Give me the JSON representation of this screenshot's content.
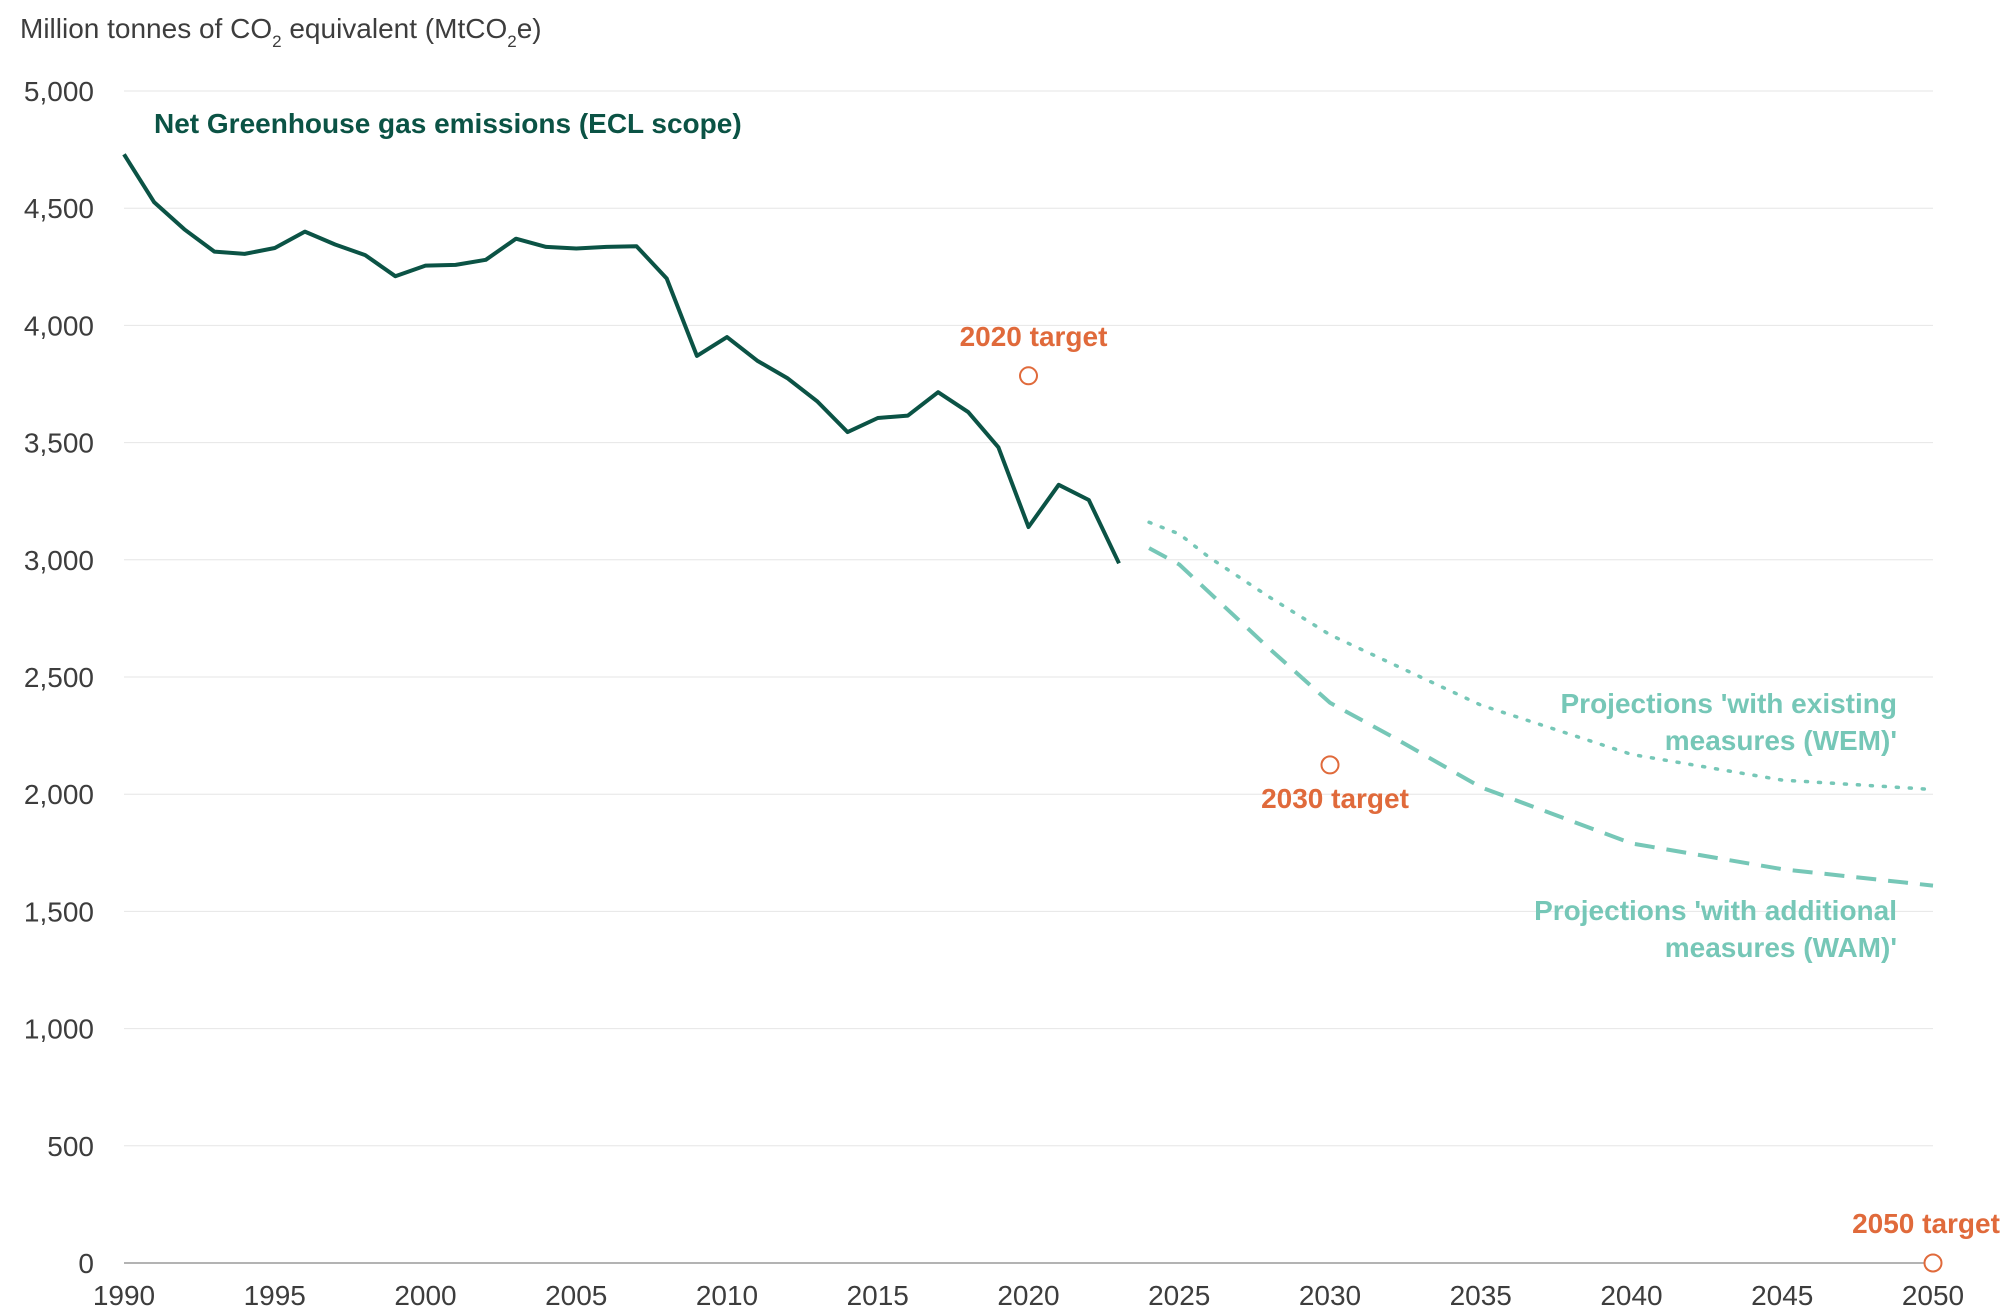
{
  "chart_data": {
    "type": "line",
    "ylabel": {
      "prefix": "Million tonnes of CO",
      "sub1": "2",
      "middle": " equivalent (MtCO",
      "sub2": "2",
      "suffix": "e)"
    },
    "xlim": [
      1990,
      2050
    ],
    "ylim": [
      0,
      5000
    ],
    "x_ticks": [
      1990,
      1995,
      2000,
      2005,
      2010,
      2015,
      2020,
      2025,
      2030,
      2035,
      2040,
      2045,
      2050
    ],
    "y_ticks": [
      0,
      500,
      1000,
      1500,
      2000,
      2500,
      3000,
      3500,
      4000,
      4500,
      5000
    ],
    "y_tick_labels": [
      "0",
      "500",
      "1,000",
      "1,500",
      "2,000",
      "2,500",
      "3,000",
      "3,500",
      "4,000",
      "4,500",
      "5,000"
    ],
    "grid": true,
    "colors": {
      "historic": "#0b5345",
      "projection": "#76c7b7",
      "target": "#e06a3b",
      "grid": "#e6e6e6",
      "axis": "#9a9a9a"
    },
    "series": [
      {
        "name": "Net Greenhouse gas emissions (ECL scope)",
        "style": "solid",
        "x": [
          1990,
          1991,
          1992,
          1993,
          1994,
          1995,
          1996,
          1997,
          1998,
          1999,
          2000,
          2001,
          2002,
          2003,
          2004,
          2005,
          2006,
          2007,
          2008,
          2009,
          2010,
          2011,
          2012,
          2013,
          2014,
          2015,
          2016,
          2017,
          2018,
          2019,
          2020,
          2021,
          2022,
          2023
        ],
        "y": [
          4730,
          4525,
          4410,
          4315,
          4305,
          4330,
          4400,
          4345,
          4300,
          4210,
          4255,
          4258,
          4280,
          4370,
          4335,
          4328,
          4335,
          4338,
          4200,
          3870,
          3950,
          3850,
          3775,
          3675,
          3545,
          3605,
          3615,
          3715,
          3630,
          3480,
          3140,
          3320,
          3255,
          2985
        ]
      },
      {
        "name": "Projections 'with existing measures (WEM)'",
        "label_lines": [
          "Projections 'with existing",
          "measures (WEM)'"
        ],
        "style": "dotted",
        "x": [
          2024,
          2025,
          2026,
          2028,
          2030,
          2032,
          2035,
          2040,
          2045,
          2050
        ],
        "y": [
          3160,
          3110,
          3010,
          2840,
          2680,
          2560,
          2380,
          2170,
          2060,
          2020
        ]
      },
      {
        "name": "Projections 'with additional measures (WAM)'",
        "label_lines": [
          "Projections 'with additional",
          "measures (WAM)'"
        ],
        "style": "dashed",
        "x": [
          2024,
          2025,
          2026,
          2028,
          2030,
          2032,
          2035,
          2040,
          2045,
          2050
        ],
        "y": [
          3050,
          2980,
          2860,
          2620,
          2390,
          2250,
          2030,
          1790,
          1680,
          1610
        ]
      }
    ],
    "targets": [
      {
        "label": "2020 target",
        "x": 2020,
        "y": 3785
      },
      {
        "label": "2030 target",
        "x": 2030,
        "y": 2125
      },
      {
        "label": "2050 target",
        "x": 2050,
        "y": 0
      }
    ]
  }
}
